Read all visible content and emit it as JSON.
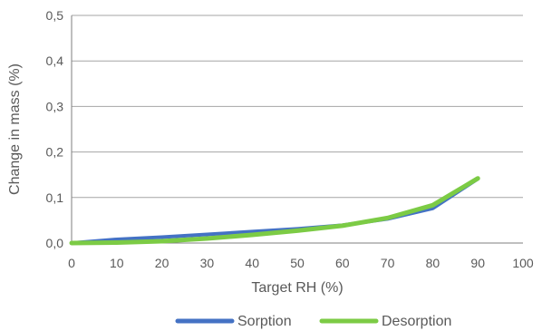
{
  "chart_data": {
    "type": "line",
    "title": "",
    "xlabel": "Target RH (%)",
    "ylabel": "Change in mass (%)",
    "xlim": [
      0,
      100
    ],
    "ylim": [
      0,
      0.5
    ],
    "x_ticks": [
      "0",
      "10",
      "20",
      "30",
      "40",
      "50",
      "60",
      "70",
      "80",
      "90",
      "100"
    ],
    "y_ticks": [
      "0,0",
      "0,1",
      "0,2",
      "0,3",
      "0,4",
      "0,5"
    ],
    "grid": "horizontal",
    "legend_position": "bottom",
    "series": [
      {
        "name": "Sorption",
        "color": "#4472C4",
        "x": [
          0,
          10,
          20,
          30,
          40,
          50,
          60,
          70,
          80,
          90
        ],
        "y": [
          0.0,
          0.008,
          0.013,
          0.019,
          0.025,
          0.031,
          0.039,
          0.053,
          0.076,
          0.141
        ]
      },
      {
        "name": "Desorption",
        "color": "#7CCB45",
        "x": [
          0,
          10,
          20,
          30,
          40,
          50,
          60,
          70,
          80,
          90
        ],
        "y": [
          0.0,
          0.001,
          0.004,
          0.01,
          0.018,
          0.027,
          0.038,
          0.055,
          0.083,
          0.142
        ]
      }
    ]
  }
}
